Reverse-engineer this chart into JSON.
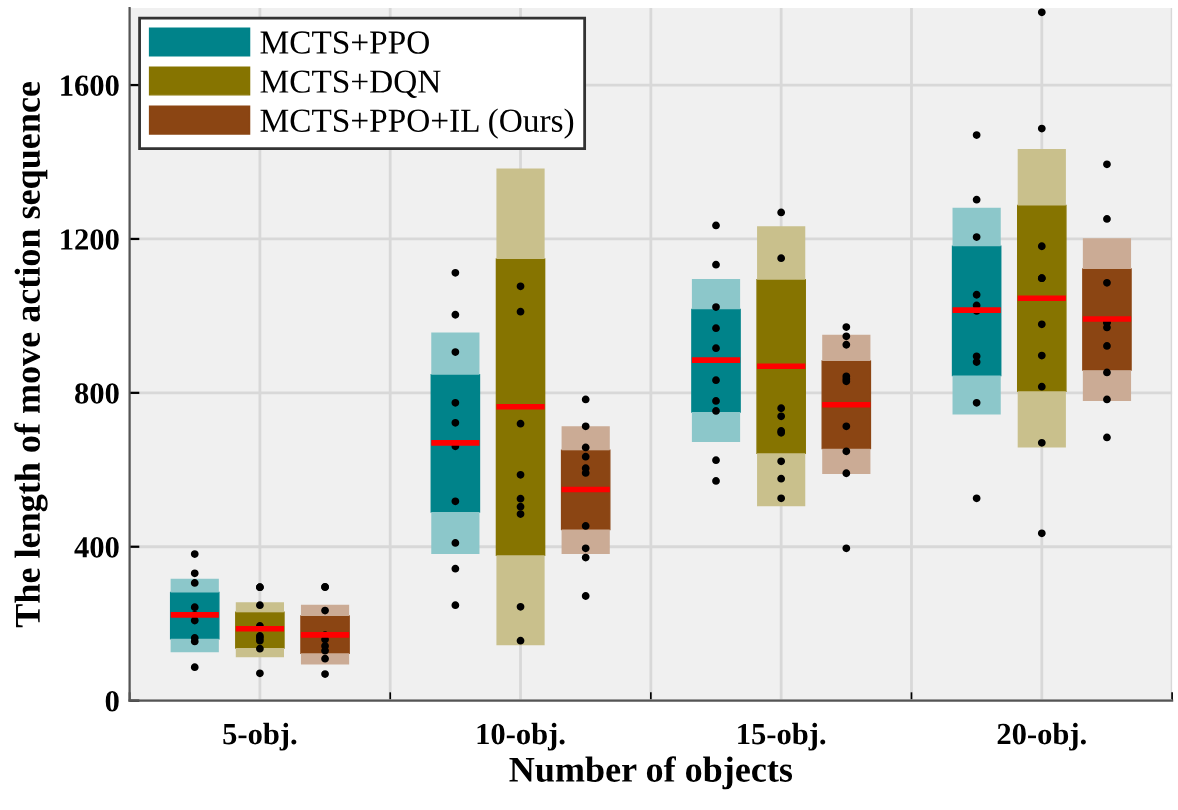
{
  "chart_data": {
    "type": "box",
    "xlabel": "Number of objects",
    "ylabel": "The length of move action sequence",
    "categories": [
      "5-obj.",
      "10-obj.",
      "15-obj.",
      "20-obj."
    ],
    "ylim": [
      0,
      1800
    ],
    "yticks": [
      0,
      400,
      800,
      1200,
      1600
    ],
    "grid": true,
    "legend": "top left",
    "series": [
      {
        "name": "MCTS+PPO",
        "color": "#00838a",
        "boxes": [
          {
            "low": 126,
            "q1": 161,
            "median": 223,
            "q3": 281,
            "high": 317,
            "outliers": [
              381,
              331,
              306,
              243,
              223,
              208,
              163,
              154,
              87
            ]
          },
          {
            "low": 381,
            "q1": 490,
            "median": 670,
            "q3": 847,
            "high": 957,
            "outliers": [
              1112,
              1003,
              906,
              774,
              722,
              661,
              518,
              410,
              343,
              248
            ]
          },
          {
            "low": 672,
            "q1": 750,
            "median": 885,
            "q3": 1017,
            "high": 1096,
            "outliers": [
              1235,
              1133,
              1023,
              968,
              916,
              833,
              779,
              753,
              625,
              571
            ]
          },
          {
            "low": 744,
            "q1": 845,
            "median": 1015,
            "q3": 1181,
            "high": 1281,
            "outliers": [
              1470,
              1302,
              1205,
              1055,
              1027,
              1013,
              895,
              880,
              774,
              526
            ]
          }
        ]
      },
      {
        "name": "MCTS+DQN",
        "color": "#867400",
        "boxes": [
          {
            "low": 113,
            "q1": 137,
            "median": 187,
            "q3": 230,
            "high": 256,
            "outliers": [
              295,
              295,
              248,
              194,
              168,
              163,
              156,
              135,
              71
            ]
          },
          {
            "low": 144,
            "q1": 378,
            "median": 764,
            "q3": 1148,
            "high": 1383,
            "outliers": [
              1077,
              1011,
              720,
              587,
              525,
              504,
              485,
              244,
              156
            ]
          },
          {
            "low": 505,
            "q1": 643,
            "median": 869,
            "q3": 1094,
            "high": 1233,
            "outliers": [
              1269,
              1150,
              760,
              739,
              701,
              696,
              622,
              577,
              526
            ]
          },
          {
            "low": 658,
            "q1": 804,
            "median": 1046,
            "q3": 1287,
            "high": 1434,
            "outliers": [
              1789,
              1487,
              1181,
              1098,
              1098,
              978,
              897,
              816,
              670,
              435
            ]
          }
        ]
      },
      {
        "name": "MCTS+PPO+IL (Ours)",
        "color": "#8b4513",
        "boxes": [
          {
            "low": 94,
            "q1": 123,
            "median": 171,
            "q3": 220,
            "high": 249,
            "outliers": [
              296,
              295,
              234,
              170,
              159,
              142,
              130,
              109,
              69
            ]
          },
          {
            "low": 381,
            "q1": 445,
            "median": 549,
            "q3": 651,
            "high": 713,
            "outliers": [
              783,
              713,
              658,
              634,
              604,
              592,
              454,
              396,
              372,
              272
            ]
          },
          {
            "low": 589,
            "q1": 655,
            "median": 769,
            "q3": 883,
            "high": 951,
            "outliers": [
              971,
              947,
              925,
              843,
              836,
              830,
              713,
              648,
              591,
              396
            ]
          },
          {
            "low": 779,
            "q1": 859,
            "median": 992,
            "q3": 1122,
            "high": 1202,
            "outliers": [
              1394,
              1252,
              1086,
              983,
              983,
              970,
              922,
              853,
              783,
              684
            ]
          }
        ]
      }
    ]
  }
}
